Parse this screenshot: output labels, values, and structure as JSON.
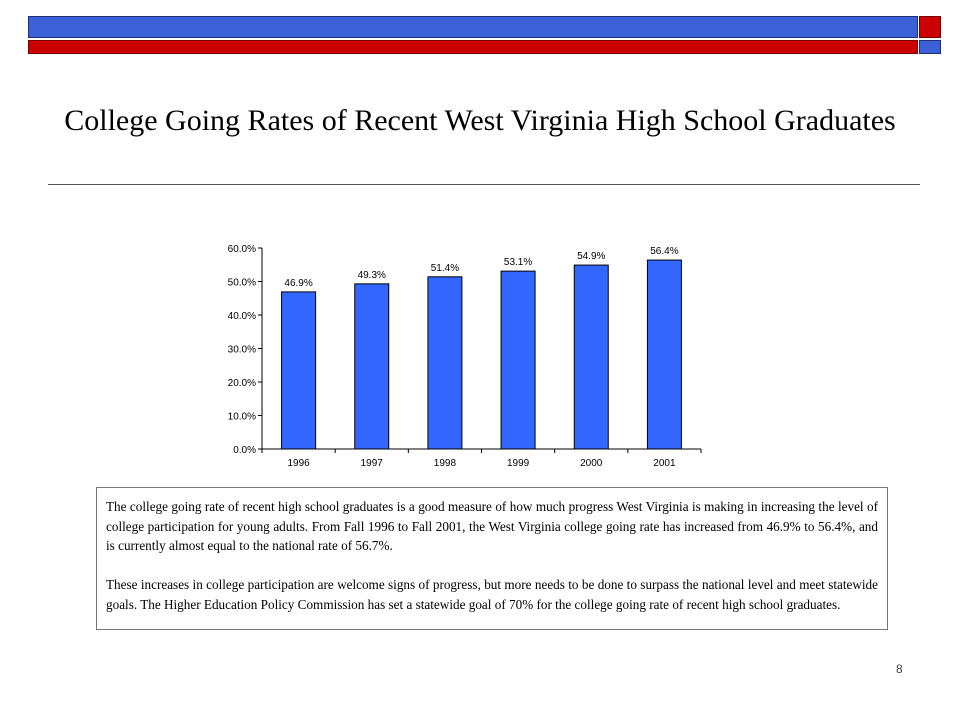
{
  "slide": {
    "title": "College Going Rates of Recent West Virginia High School Graduates",
    "paragraphs": [
      "The college going rate of recent high school graduates is a good measure of how much progress West Virginia is making in increasing the level of college participation for young adults.  From Fall 1996 to Fall 2001, the West Virginia college going rate has increased from 46.9% to 56.4%, and is currently almost equal to the national rate of 56.7%.",
      "These increases in college participation are welcome signs of progress, but more needs to be done to surpass the national level and meet statewide goals.  The Higher Education Policy Commission has set a statewide goal of 70% for the college going rate of recent high school graduates."
    ],
    "page_number": "8",
    "colors": {
      "accent_blue": "#3c61d6",
      "accent_red": "#cc0000",
      "bar_fill": "#3366ff"
    }
  },
  "chart_data": {
    "type": "bar",
    "title": "",
    "xlabel": "",
    "ylabel": "",
    "categories": [
      "1996",
      "1997",
      "1998",
      "1999",
      "2000",
      "2001"
    ],
    "values": [
      46.9,
      49.3,
      51.4,
      53.1,
      54.9,
      56.4
    ],
    "data_labels": [
      "46.9%",
      "49.3%",
      "51.4%",
      "53.1%",
      "54.9%",
      "56.4%"
    ],
    "ylim": [
      0,
      60
    ],
    "yticks": [
      0,
      10,
      20,
      30,
      40,
      50,
      60
    ],
    "ytick_labels": [
      "0.0%",
      "10.0%",
      "20.0%",
      "30.0%",
      "40.0%",
      "50.0%",
      "60.0%"
    ],
    "grid": false,
    "legend": "none"
  }
}
